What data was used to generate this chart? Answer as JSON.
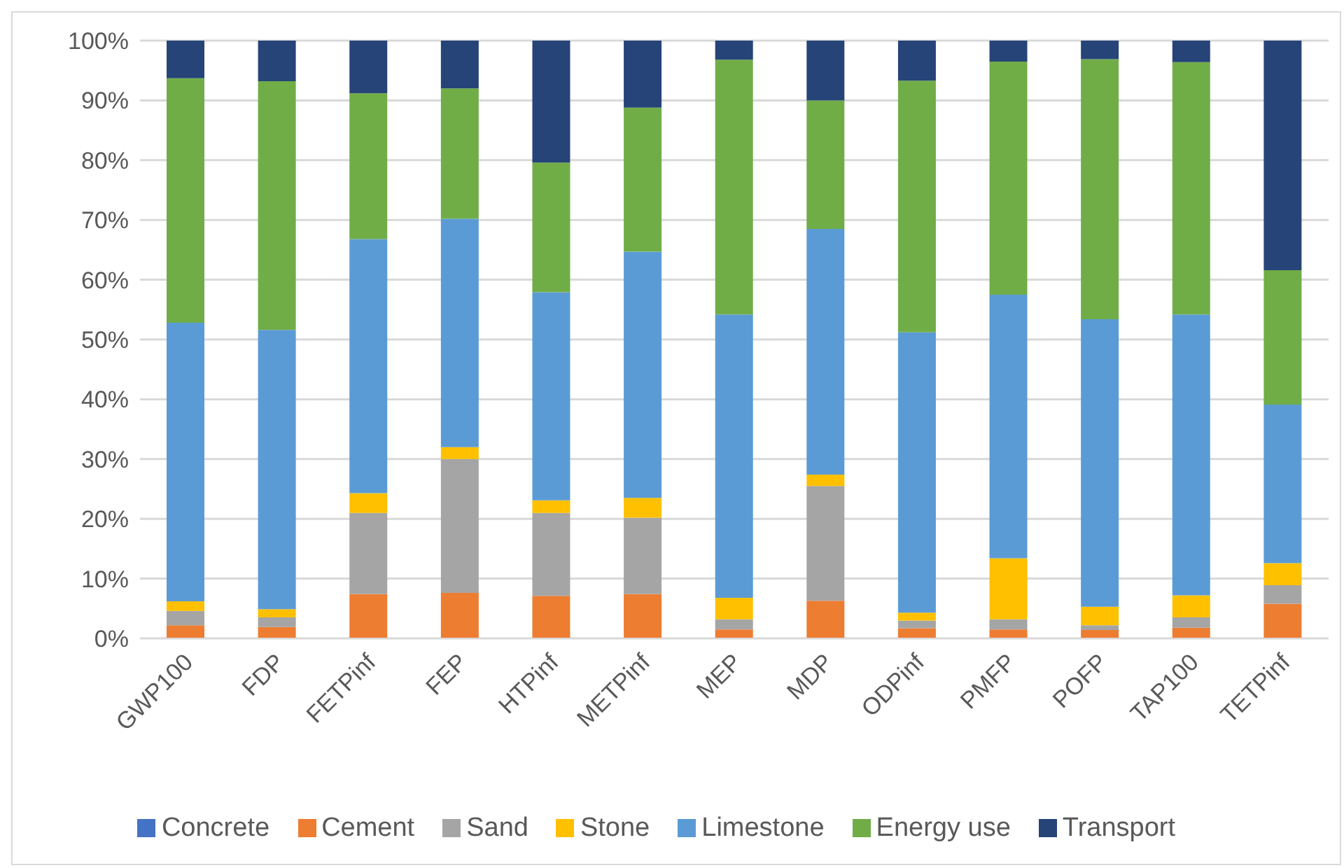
{
  "chart_data": {
    "type": "bar",
    "stacked": true,
    "categories": [
      "GWP100",
      "FDP",
      "FETPinf",
      "FEP",
      "HTPinf",
      "METPinf",
      "MEP",
      "MDP",
      "ODPinf",
      "PMFP",
      "POFP",
      "TAP100",
      "TETPinf"
    ],
    "series": [
      {
        "name": "Concrete",
        "color": "#4472c4",
        "values": [
          0,
          0,
          0,
          0,
          0,
          0,
          0,
          0,
          0,
          0,
          0,
          0,
          0
        ]
      },
      {
        "name": "Cement",
        "color": "#ed7d31",
        "values": [
          2.2,
          1.9,
          7.4,
          7.6,
          7.1,
          7.4,
          1.5,
          6.3,
          1.7,
          1.5,
          1.4,
          1.8,
          5.8
        ]
      },
      {
        "name": "Sand",
        "color": "#a5a5a5",
        "values": [
          2.4,
          1.6,
          13.6,
          22.4,
          13.9,
          12.8,
          1.7,
          19.2,
          1.3,
          1.7,
          0.8,
          1.7,
          3.1
        ]
      },
      {
        "name": "Stone",
        "color": "#ffc000",
        "values": [
          1.6,
          1.4,
          3.3,
          2.0,
          2.1,
          3.3,
          3.6,
          1.9,
          1.3,
          10.2,
          3.1,
          3.7,
          3.7
        ]
      },
      {
        "name": "Limestone",
        "color": "#5b9bd5",
        "values": [
          46.6,
          46.7,
          42.5,
          38.2,
          34.8,
          41.2,
          47.4,
          41.1,
          46.9,
          44.1,
          48.1,
          47.0,
          26.5
        ]
      },
      {
        "name": "Energy use",
        "color": "#70ad47",
        "values": [
          40.9,
          41.6,
          24.4,
          21.8,
          21.7,
          24.1,
          42.6,
          21.5,
          42.1,
          39.0,
          43.5,
          42.2,
          22.5
        ]
      },
      {
        "name": "Transport",
        "color": "#264478",
        "values": [
          6.3,
          6.8,
          8.8,
          8.0,
          20.4,
          11.2,
          3.2,
          10.0,
          6.7,
          3.5,
          3.1,
          3.6,
          38.4
        ]
      }
    ],
    "ylim": [
      0,
      100
    ],
    "yticks": [
      {
        "value": 0,
        "label": "0%"
      },
      {
        "value": 10,
        "label": "10%"
      },
      {
        "value": 20,
        "label": "20%"
      },
      {
        "value": 30,
        "label": "30%"
      },
      {
        "value": 40,
        "label": "40%"
      },
      {
        "value": 50,
        "label": "50%"
      },
      {
        "value": 60,
        "label": "60%"
      },
      {
        "value": 70,
        "label": "70%"
      },
      {
        "value": 80,
        "label": "80%"
      },
      {
        "value": 90,
        "label": "90%"
      },
      {
        "value": 100,
        "label": "100%"
      }
    ],
    "grid": "y",
    "legend": "bottom"
  }
}
